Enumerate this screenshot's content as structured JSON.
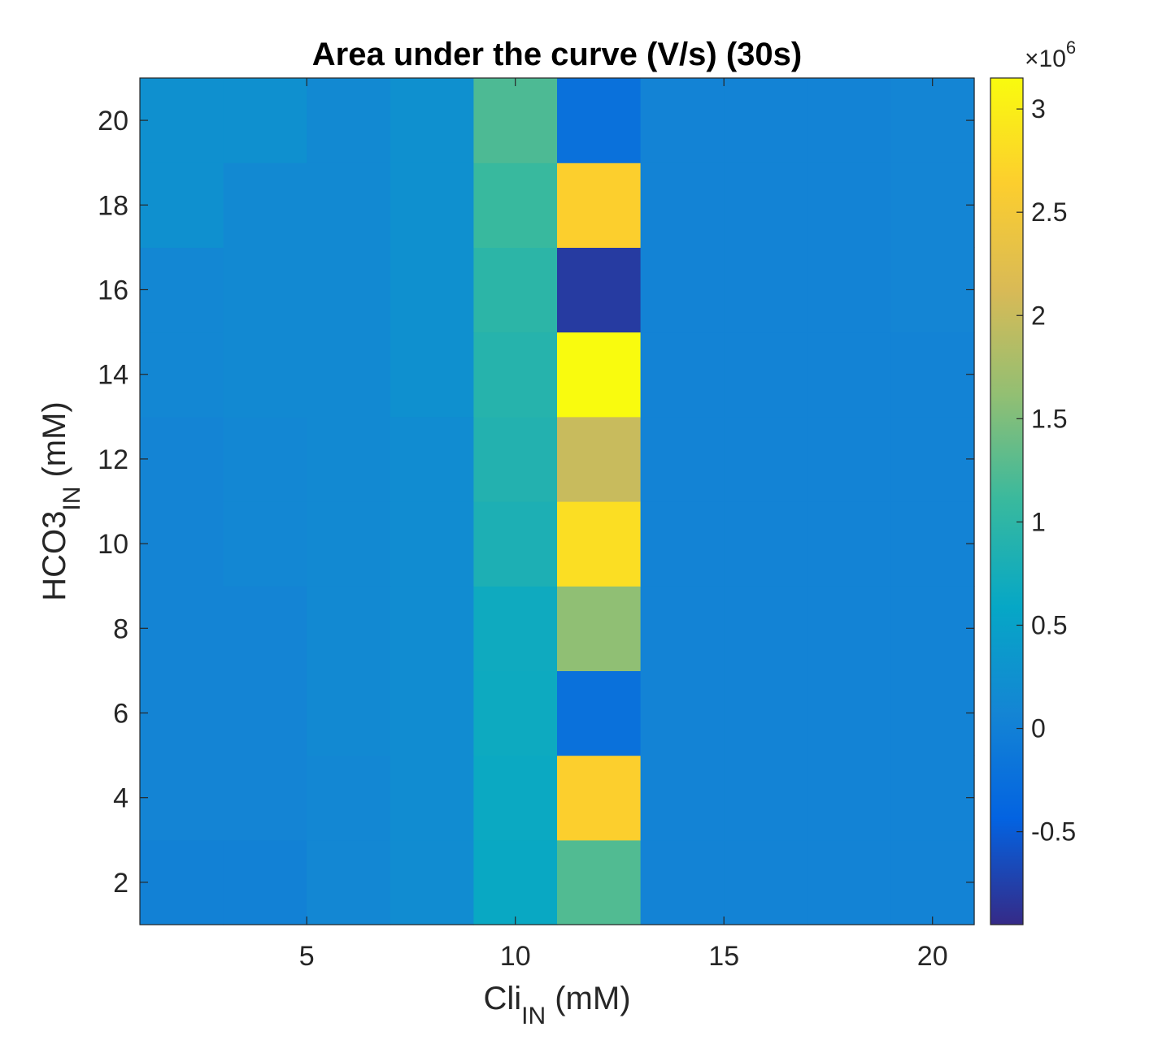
{
  "chart_data": {
    "type": "heatmap",
    "title": "Area under the curve (V/s) (30s)",
    "xlabel": {
      "base": "Cli",
      "sub": "IN",
      "suffix": " (mM)"
    },
    "ylabel": {
      "base": "HCO3",
      "sub": "IN",
      "suffix": " (mM)"
    },
    "x_centers": [
      2,
      4,
      6,
      8,
      10,
      12,
      14,
      16,
      18,
      20
    ],
    "y_centers": [
      2,
      4,
      6,
      8,
      10,
      12,
      14,
      16,
      18,
      20
    ],
    "xlim": [
      1,
      21
    ],
    "ylim": [
      1,
      21
    ],
    "x_ticks": [
      5,
      10,
      15,
      20
    ],
    "y_ticks": [
      2,
      4,
      6,
      8,
      10,
      12,
      14,
      16,
      18,
      20
    ],
    "clim": [
      -0.95,
      3.15
    ],
    "colorbar": {
      "ticks": [
        -0.5,
        0,
        0.5,
        1,
        1.5,
        2,
        2.5,
        3
      ],
      "tick_labels": [
        "-0.5",
        "0",
        "0.5",
        "1",
        "1.5",
        "2",
        "2.5",
        "3"
      ],
      "exponent_prefix": "×10",
      "exponent": "6"
    },
    "colormap": "parula",
    "values_note": "rows listed by y center ascending; values in units of 1e6",
    "z": [
      [
        0.02,
        0.02,
        0.1,
        0.18,
        0.62,
        1.24,
        0.05,
        0.05,
        0.05,
        0.05
      ],
      [
        0.06,
        0.06,
        0.1,
        0.18,
        0.64,
        2.65,
        0.05,
        0.05,
        0.05,
        0.05
      ],
      [
        0.06,
        0.06,
        0.14,
        0.18,
        0.66,
        -0.22,
        0.05,
        0.05,
        0.05,
        0.05
      ],
      [
        0.06,
        0.06,
        0.14,
        0.18,
        0.68,
        1.6,
        0.05,
        0.05,
        0.05,
        0.05
      ],
      [
        0.06,
        0.1,
        0.14,
        0.18,
        0.82,
        2.82,
        0.05,
        0.05,
        0.05,
        0.05
      ],
      [
        0.06,
        0.1,
        0.14,
        0.18,
        0.88,
        2.0,
        0.05,
        0.05,
        0.05,
        0.05
      ],
      [
        0.1,
        0.14,
        0.14,
        0.24,
        0.92,
        3.15,
        0.05,
        0.05,
        0.05,
        0.05
      ],
      [
        0.1,
        0.14,
        0.14,
        0.24,
        0.98,
        -0.8,
        0.05,
        0.05,
        0.05,
        0.08
      ],
      [
        0.24,
        0.14,
        0.14,
        0.24,
        1.1,
        2.65,
        0.05,
        0.05,
        0.05,
        0.08
      ],
      [
        0.24,
        0.24,
        0.14,
        0.24,
        1.22,
        -0.22,
        0.05,
        0.05,
        0.05,
        0.08
      ]
    ]
  }
}
